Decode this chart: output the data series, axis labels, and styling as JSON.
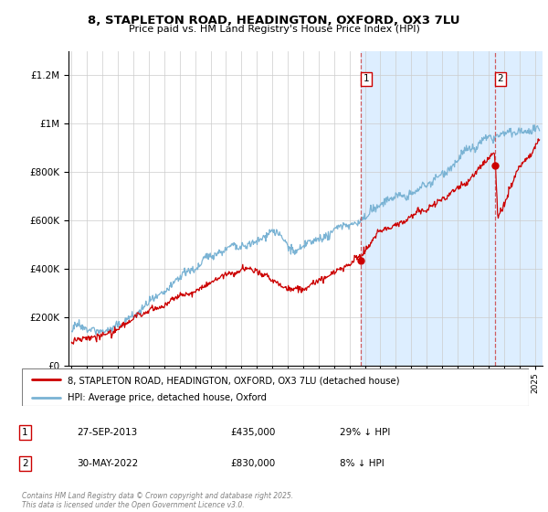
{
  "title": "8, STAPLETON ROAD, HEADINGTON, OXFORD, OX3 7LU",
  "subtitle": "Price paid vs. HM Land Registry's House Price Index (HPI)",
  "hpi_label": "HPI: Average price, detached house, Oxford",
  "property_label": "8, STAPLETON ROAD, HEADINGTON, OXFORD, OX3 7LU (detached house)",
  "transaction1_date": "27-SEP-2013",
  "transaction1_price": "£435,000",
  "transaction1_note": "29% ↓ HPI",
  "transaction2_date": "30-MAY-2022",
  "transaction2_price": "£830,000",
  "transaction2_note": "8% ↓ HPI",
  "footer": "Contains HM Land Registry data © Crown copyright and database right 2025.\nThis data is licensed under the Open Government Licence v3.0.",
  "hpi_color": "#7ab3d4",
  "property_color": "#cc0000",
  "transaction1_year": 2013.75,
  "transaction2_year": 2022.42,
  "ylim_max": 1300000,
  "xlim_start": 1994.8,
  "xlim_end": 2025.5,
  "shading_color": "#ddeeff",
  "dashed_color": "#cc4444",
  "grid_color": "#cccccc"
}
